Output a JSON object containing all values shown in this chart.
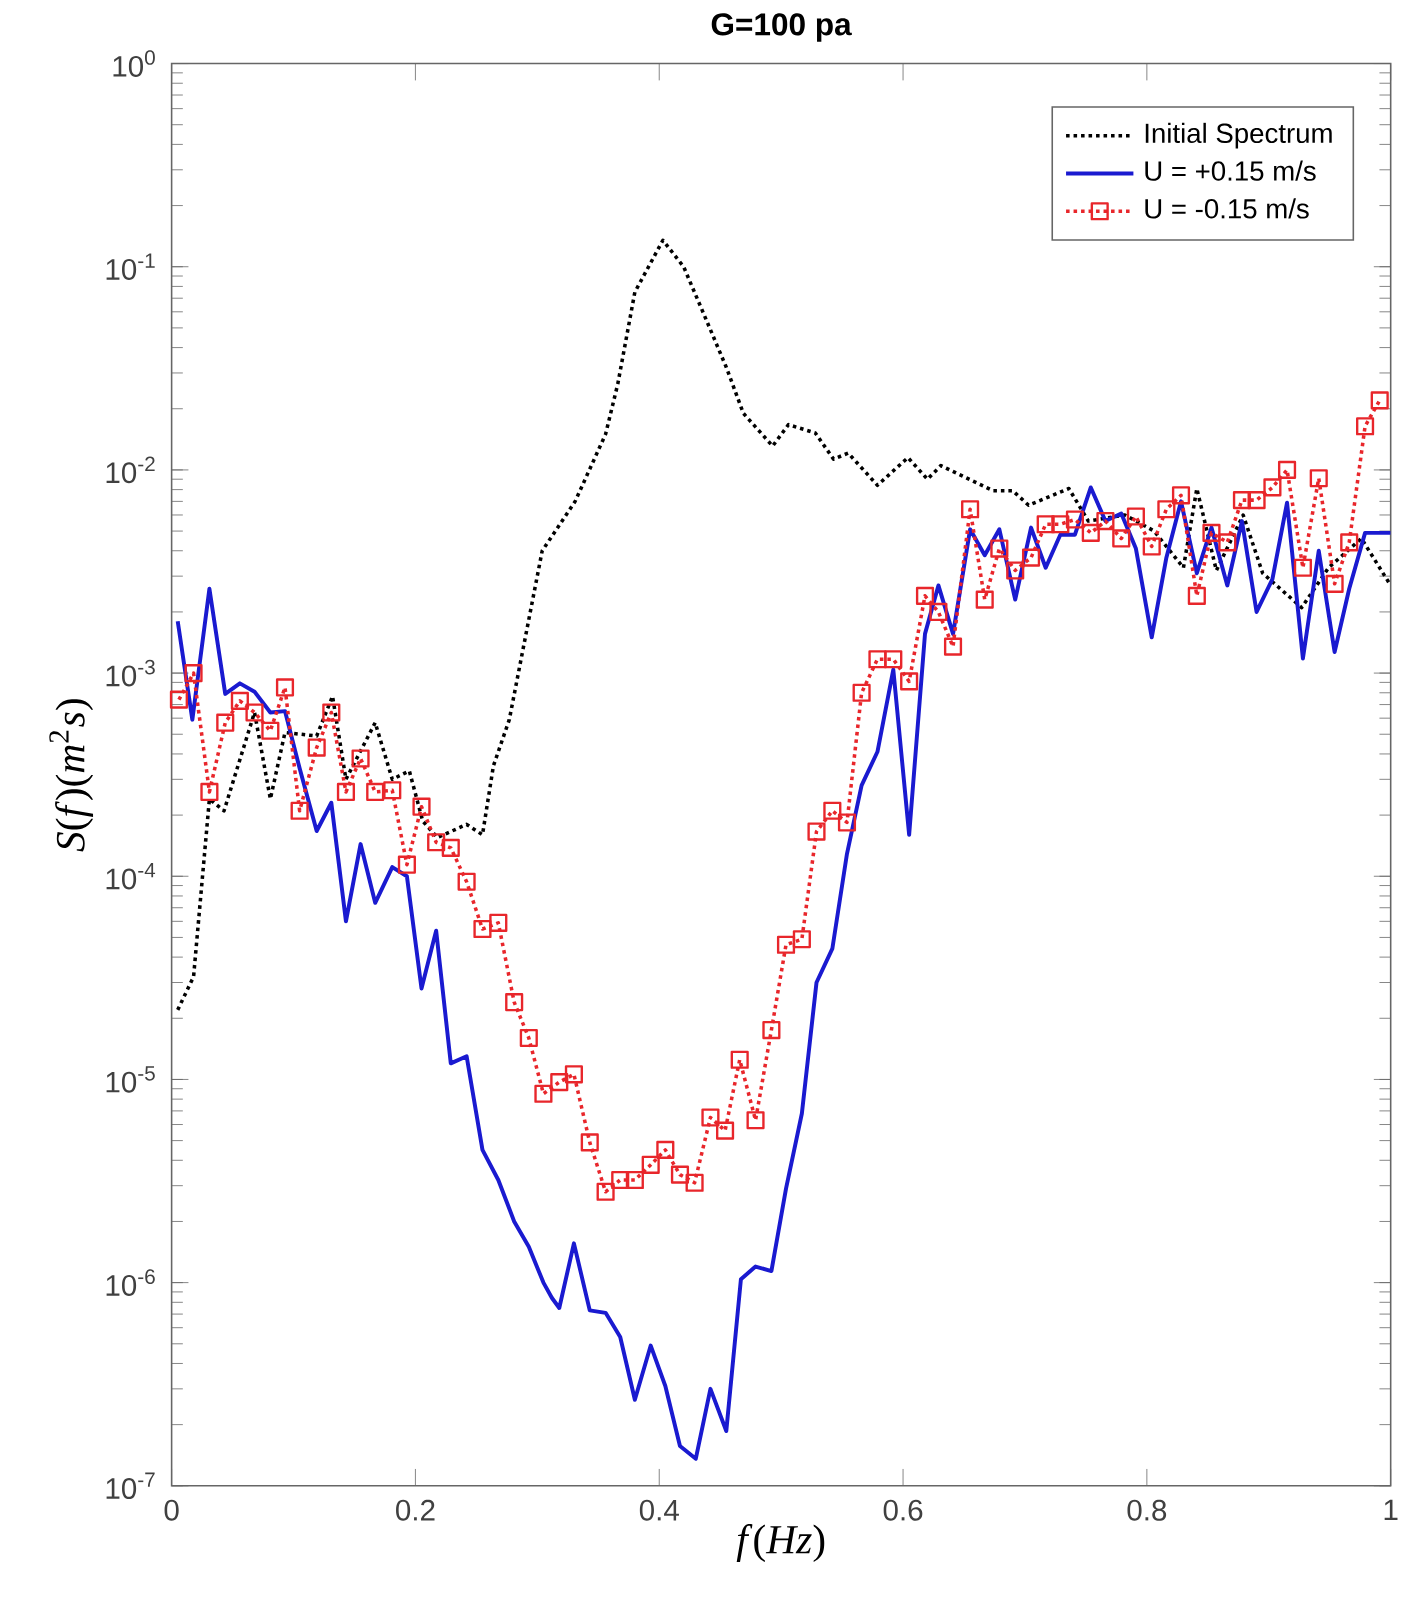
{
  "chart_data": {
    "type": "line",
    "title": "**G=100 pa**",
    "xlabel": "*f*(*Hz*)",
    "ylabel": "*S*(*f*)(*m*$^{2}$*s*)",
    "xlim": [
      0,
      1
    ],
    "ylim": [
      1e-07,
      1
    ],
    "xticks": [
      0,
      0.2,
      0.4,
      0.6,
      0.8,
      1
    ],
    "yticks": [
      {
        "value": 1e-07,
        "label": "10$^{-7}$"
      },
      {
        "value": 1e-06,
        "label": "10$^{-6}$"
      },
      {
        "value": 1e-05,
        "label": "10$^{-5}$"
      },
      {
        "value": 0.0001,
        "label": "10$^{-4}$"
      },
      {
        "value": 0.001,
        "label": "10$^{-3}$"
      },
      {
        "value": 0.01,
        "label": "10$^{-2}$"
      },
      {
        "value": 0.1,
        "label": "10$^{-1}$"
      },
      {
        "value": 1,
        "label": "10$^{0}$"
      }
    ],
    "log": "y",
    "grid": false,
    "legend": "top right",
    "series": [
      {
        "name": "Initial Spectrum",
        "color": "#000000",
        "line_style": "dotted",
        "marker": "none",
        "x": [
          0.005,
          0.018,
          0.031,
          0.043,
          0.068,
          0.081,
          0.093,
          0.119,
          0.132,
          0.143,
          0.167,
          0.181,
          0.195,
          0.206,
          0.218,
          0.242,
          0.255,
          0.264,
          0.277,
          0.304,
          0.331,
          0.356,
          0.366,
          0.38,
          0.403,
          0.42,
          0.439,
          0.455,
          0.469,
          0.493,
          0.506,
          0.528,
          0.543,
          0.555,
          0.579,
          0.604,
          0.62,
          0.631,
          0.674,
          0.69,
          0.703,
          0.736,
          0.752,
          0.782,
          0.806,
          0.83,
          0.841,
          0.857,
          0.879,
          0.895,
          0.927,
          0.949,
          0.976,
          1.0
        ],
        "values": [
          2.2e-05,
          3.2e-05,
          0.00024,
          0.00021,
          0.00064,
          0.00024,
          0.00051,
          0.00049,
          0.00077,
          0.0003,
          0.00057,
          0.0003,
          0.00033,
          0.000187,
          0.000155,
          0.00018,
          0.00016,
          0.00035,
          0.00059,
          0.004,
          0.007,
          0.015,
          0.0265,
          0.075,
          0.135,
          0.1,
          0.054,
          0.032,
          0.019,
          0.0131,
          0.0167,
          0.0152,
          0.0113,
          0.0121,
          0.0084,
          0.0115,
          0.009,
          0.0105,
          0.0079,
          0.0079,
          0.0067,
          0.0081,
          0.0056,
          0.006,
          0.005,
          0.0033,
          0.0081,
          0.0032,
          0.006,
          0.0031,
          0.0021,
          0.0033,
          0.0046,
          0.0027
        ]
      },
      {
        "name": "U = +0.15 m/s",
        "color": "#1a1ad0",
        "line_style": "solid",
        "marker": "none",
        "x": [
          0.005,
          0.017,
          0.031,
          0.044,
          0.056,
          0.068,
          0.081,
          0.093,
          0.105,
          0.119,
          0.131,
          0.143,
          0.155,
          0.167,
          0.181,
          0.193,
          0.205,
          0.217,
          0.229,
          0.242,
          0.255,
          0.268,
          0.281,
          0.293,
          0.305,
          0.312,
          0.318,
          0.33,
          0.343,
          0.356,
          0.368,
          0.38,
          0.393,
          0.405,
          0.417,
          0.43,
          0.442,
          0.455,
          0.467,
          0.479,
          0.492,
          0.504,
          0.517,
          0.529,
          0.542,
          0.554,
          0.566,
          0.579,
          0.592,
          0.605,
          0.618,
          0.629,
          0.641,
          0.655,
          0.667,
          0.679,
          0.692,
          0.705,
          0.717,
          0.729,
          0.741,
          0.754,
          0.766,
          0.779,
          0.791,
          0.804,
          0.816,
          0.828,
          0.841,
          0.853,
          0.866,
          0.878,
          0.89,
          0.903,
          0.915,
          0.928,
          0.941,
          0.954,
          0.966,
          0.979,
          0.989,
          1.0
        ],
        "values": [
          0.0018,
          0.00059,
          0.0026,
          0.00079,
          0.00089,
          0.00081,
          0.00064,
          0.00065,
          0.00034,
          0.000167,
          0.00023,
          6e-05,
          0.000144,
          7.4e-05,
          0.000111,
          0.0001,
          2.8e-05,
          5.4e-05,
          1.2e-05,
          1.3e-05,
          4.5e-06,
          3.2e-06,
          2e-06,
          1.5e-06,
          1e-06,
          8.4e-07,
          7.5e-07,
          1.56e-06,
          7.3e-07,
          7.1e-07,
          5.4e-07,
          2.65e-07,
          4.9e-07,
          3.1e-07,
          1.57e-07,
          1.36e-07,
          3e-07,
          1.86e-07,
          1.04e-06,
          1.2e-06,
          1.14e-06,
          2.9e-06,
          6.8e-06,
          3e-05,
          4.4e-05,
          0.000129,
          0.00028,
          0.00041,
          0.00104,
          0.00016,
          0.00156,
          0.0027,
          0.00156,
          0.0051,
          0.0038,
          0.0051,
          0.0023,
          0.0052,
          0.0033,
          0.0048,
          0.0048,
          0.0082,
          0.0056,
          0.0061,
          0.0041,
          0.0015,
          0.0037,
          0.007,
          0.0031,
          0.0052,
          0.0027,
          0.0056,
          0.002,
          0.0029,
          0.0069,
          0.00118,
          0.004,
          0.00127,
          0.0026,
          0.0049,
          0.0049,
          0.0049
        ]
      },
      {
        "name": "U = -0.15 m/s",
        "color": "#e8262b",
        "line_style": "dotted",
        "marker": "square",
        "x": [
          0.006,
          0.018,
          0.031,
          0.044,
          0.056,
          0.068,
          0.081,
          0.093,
          0.105,
          0.119,
          0.131,
          0.143,
          0.155,
          0.167,
          0.181,
          0.193,
          0.205,
          0.217,
          0.229,
          0.242,
          0.255,
          0.268,
          0.281,
          0.293,
          0.305,
          0.318,
          0.33,
          0.343,
          0.356,
          0.368,
          0.38,
          0.393,
          0.405,
          0.417,
          0.429,
          0.442,
          0.454,
          0.466,
          0.479,
          0.492,
          0.504,
          0.517,
          0.529,
          0.542,
          0.554,
          0.566,
          0.579,
          0.592,
          0.605,
          0.618,
          0.629,
          0.641,
          0.655,
          0.667,
          0.679,
          0.692,
          0.705,
          0.717,
          0.729,
          0.741,
          0.754,
          0.766,
          0.779,
          0.791,
          0.804,
          0.816,
          0.828,
          0.841,
          0.853,
          0.866,
          0.878,
          0.89,
          0.903,
          0.915,
          0.928,
          0.941,
          0.954,
          0.966,
          0.979,
          0.991
        ],
        "values": [
          0.00074,
          0.001,
          0.00026,
          0.00057,
          0.00073,
          0.00064,
          0.00052,
          0.00085,
          0.00021,
          0.00043,
          0.00064,
          0.00026,
          0.00038,
          0.00026,
          0.000265,
          0.000114,
          0.00022,
          0.000147,
          0.000138,
          9.4e-05,
          5.5e-05,
          5.9e-05,
          2.4e-05,
          1.6e-05,
          8.5e-06,
          9.7e-06,
          1.06e-05,
          4.9e-06,
          2.8e-06,
          3.2e-06,
          3.2e-06,
          3.8e-06,
          4.5e-06,
          3.4e-06,
          3.1e-06,
          6.5e-06,
          5.6e-06,
          1.25e-05,
          6.3e-06,
          1.75e-05,
          4.6e-05,
          4.9e-05,
          0.000166,
          0.00021,
          0.000184,
          0.0008,
          0.00117,
          0.00117,
          0.00091,
          0.0024,
          0.002,
          0.00135,
          0.0064,
          0.0023,
          0.0041,
          0.0032,
          0.0037,
          0.0054,
          0.0054,
          0.0057,
          0.0049,
          0.0056,
          0.0046,
          0.0059,
          0.0042,
          0.0064,
          0.0075,
          0.0024,
          0.0049,
          0.0044,
          0.0071,
          0.0071,
          0.0082,
          0.01,
          0.0033,
          0.0091,
          0.00275,
          0.0044,
          0.0164,
          0.022
        ]
      }
    ]
  }
}
